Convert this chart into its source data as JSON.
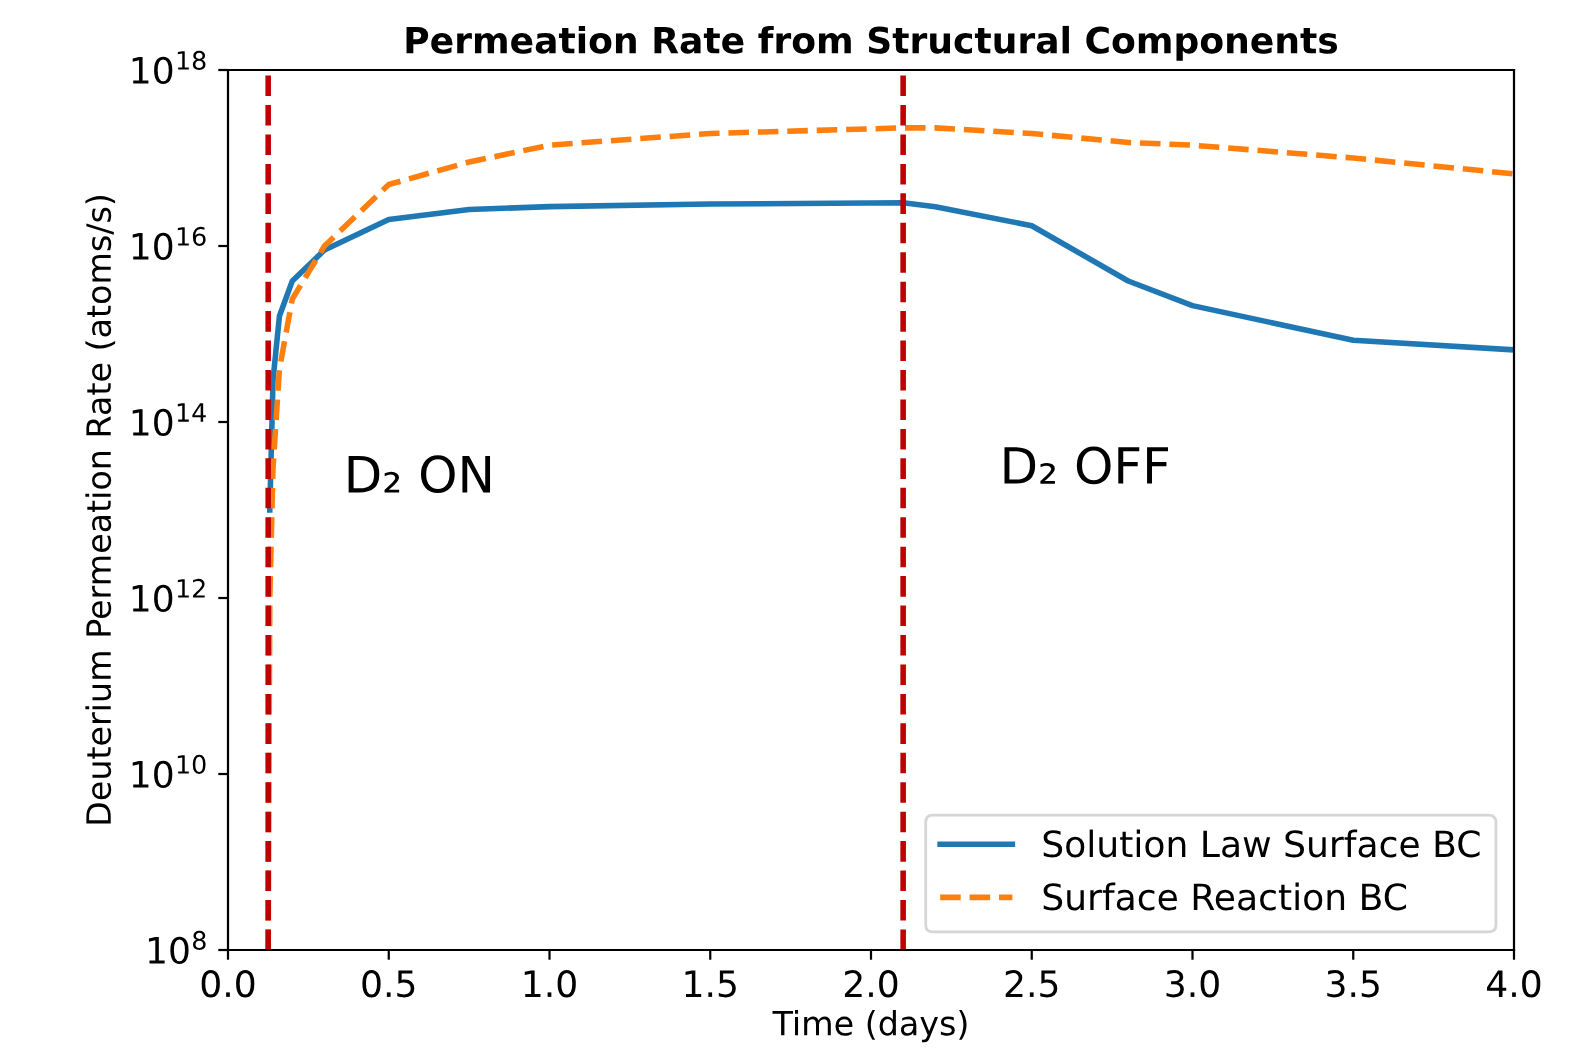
{
  "chart_data": {
    "type": "line",
    "title": "Permeation Rate from Structural Components",
    "xlabel": "Time (days)",
    "ylabel": "Deuterium Permeation Rate (atoms/s)",
    "log": "y",
    "xlim": [
      0.0,
      4.0
    ],
    "xticks": [
      {
        "value": 0.0,
        "label": "0.0"
      },
      0.5,
      {
        "value": 1.0,
        "label": "1.0"
      },
      1.5,
      {
        "value": 2.0,
        "label": "2.0"
      },
      2.5,
      {
        "value": 3.0,
        "label": "3.0"
      },
      3.5,
      {
        "value": 4.0,
        "label": "4.0"
      }
    ],
    "ylim": [
      100000000.0,
      1e+18
    ],
    "yticks": [
      {
        "value": 100000000.0,
        "label": "10$^{8}$"
      },
      {
        "value": 10000000000.0,
        "label": "10$^{10}$"
      },
      {
        "value": 1000000000000.0,
        "label": "10$^{12}$"
      },
      {
        "value": 100000000000000.0,
        "label": "10$^{14}$"
      },
      {
        "value": 1e+16,
        "label": "10$^{16}$"
      },
      {
        "value": 1e+18,
        "label": "10$^{18}$"
      }
    ],
    "x": [
      0.125,
      0.13,
      0.14,
      0.16,
      0.2,
      0.3,
      0.5,
      0.75,
      1.0,
      1.5,
      2.1,
      2.2,
      2.5,
      2.8,
      3.0,
      3.5,
      4.0
    ],
    "series": [
      {
        "name": "Solution Law Surface BC",
        "color": "#1f77b4",
        "line_style": "solid",
        "values": [
          null,
          10000000000000.0,
          300000000000000.0,
          1600000000000000.0,
          4000000000000000.0,
          9000000000000000.0,
          2e+16,
          2.6e+16,
          2.8e+16,
          3e+16,
          3.1e+16,
          2.8e+16,
          1.7e+16,
          4000000000000000.0,
          2100000000000000.0,
          850000000000000.0,
          660000000000000.0
        ]
      },
      {
        "name": "Surface Reaction BC",
        "color": "#ff7f0e",
        "line_style": "dashed",
        "values": [
          100000000.0,
          1000000000000.0,
          30000000000000.0,
          400000000000000.0,
          2500000000000000.0,
          1e+16,
          5e+16,
          9e+16,
          1.4e+17,
          1.9e+17,
          2.2e+17,
          2.2e+17,
          1.9e+17,
          1.5e+17,
          1.4e+17,
          1e+17,
          6.6e+16
        ]
      }
    ],
    "ref_lines": [
      {
        "axis": "x",
        "value": 0.125,
        "color": "#c00000",
        "line_style": "dashed"
      },
      {
        "axis": "x",
        "value": 2.1,
        "color": "#c00000",
        "line_style": "dashed"
      }
    ],
    "annotations": [
      "D₂ ON",
      "D₂ OFF"
    ],
    "legend": "bottom right",
    "grid": false
  }
}
